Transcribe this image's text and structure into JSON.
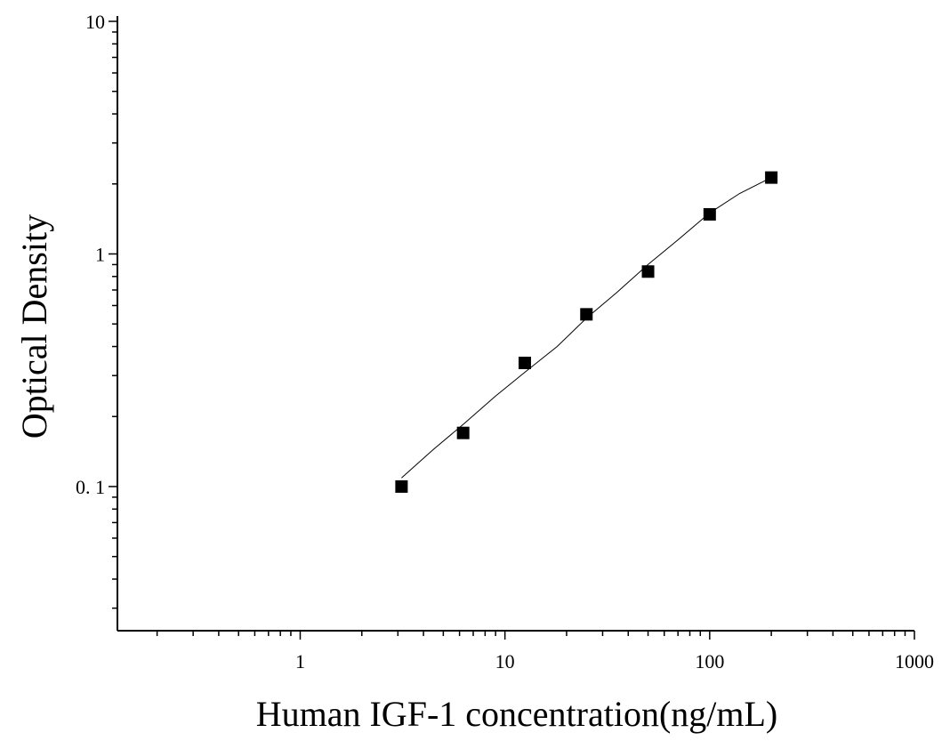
{
  "chart_data": {
    "type": "scatter",
    "title": "",
    "xlabel": "Human IGF-1 concentration(ng/mL)",
    "ylabel": "Optical Density",
    "xscale": "log",
    "yscale": "log",
    "xlim": [
      0.128,
      1000
    ],
    "ylim": [
      0.024,
      10
    ],
    "xticks": [
      {
        "value": 1,
        "label": "1"
      },
      {
        "value": 10,
        "label": "10"
      },
      {
        "value": 100,
        "label": "100"
      },
      {
        "value": 1000,
        "label": "1000"
      }
    ],
    "yticks": [
      {
        "value": 0.1,
        "label": "0. 1"
      },
      {
        "value": 1,
        "label": "1"
      },
      {
        "value": 10,
        "label": "10"
      }
    ],
    "grid": false,
    "legend": "none",
    "marker": "square",
    "marker_color": "#000000",
    "series": [
      {
        "x": [
          3.125,
          6.25,
          12.5,
          25,
          50,
          100,
          200
        ],
        "y": [
          0.1,
          0.17,
          0.34,
          0.55,
          0.84,
          1.48,
          2.13
        ]
      }
    ],
    "fit_curve": {
      "x": [
        3.125,
        4.5,
        6.25,
        9,
        12.5,
        18,
        25,
        35,
        50,
        70,
        100,
        140,
        200
      ],
      "y": [
        0.109,
        0.145,
        0.185,
        0.245,
        0.31,
        0.4,
        0.53,
        0.68,
        0.9,
        1.15,
        1.5,
        1.82,
        2.13
      ]
    }
  }
}
